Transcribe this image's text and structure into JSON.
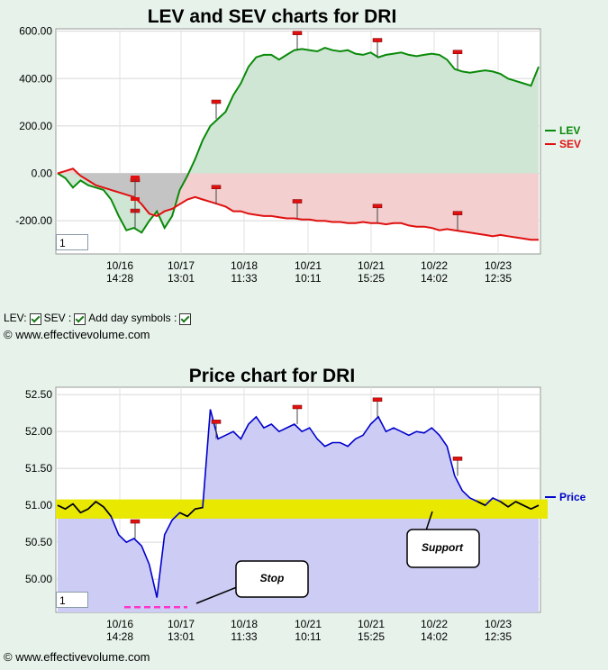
{
  "chart_data": [
    {
      "type": "line",
      "title": "LEV and SEV charts for DRI",
      "x_tick_labels": [
        {
          "date": "10/16",
          "time": "14:28"
        },
        {
          "date": "10/17",
          "time": "13:01"
        },
        {
          "date": "10/18",
          "time": "11:33"
        },
        {
          "date": "10/21",
          "time": "10:11"
        },
        {
          "date": "10/21",
          "time": "15:25"
        },
        {
          "date": "10/22",
          "time": "14:02"
        },
        {
          "date": "10/23",
          "time": "12:35"
        }
      ],
      "y_ticks": [
        "600.00",
        "400.00",
        "200.00",
        "0.00",
        "-200.00"
      ],
      "ylim": [
        -340,
        610
      ],
      "legend": [
        {
          "label": "LEV",
          "color": "#0a8a0a"
        },
        {
          "label": "SEV",
          "color": "#e01010"
        }
      ],
      "series": [
        {
          "name": "LEV",
          "color": "#0a8a0a",
          "values": [
            0,
            -20,
            -60,
            -30,
            -50,
            -60,
            -70,
            -110,
            -180,
            -240,
            -230,
            -250,
            -200,
            -160,
            -230,
            -180,
            -70,
            -10,
            60,
            140,
            200,
            230,
            260,
            330,
            380,
            450,
            490,
            500,
            500,
            480,
            500,
            520,
            525,
            520,
            515,
            530,
            520,
            515,
            520,
            505,
            500,
            510,
            490,
            500,
            505,
            510,
            500,
            495,
            500,
            505,
            500,
            480,
            440,
            430,
            425,
            430,
            435,
            430,
            420,
            400,
            390,
            380,
            370,
            450
          ]
        },
        {
          "name": "SEV",
          "color": "#e01010",
          "values": [
            0,
            10,
            20,
            -10,
            -30,
            -50,
            -60,
            -70,
            -80,
            -90,
            -100,
            -130,
            -170,
            -180,
            -160,
            -150,
            -130,
            -110,
            -100,
            -110,
            -120,
            -130,
            -140,
            -160,
            -160,
            -170,
            -175,
            -180,
            -180,
            -185,
            -190,
            -190,
            -195,
            -195,
            -200,
            -200,
            -205,
            -205,
            -210,
            -210,
            -205,
            -210,
            -210,
            -215,
            -210,
            -210,
            -220,
            -225,
            -225,
            -230,
            -240,
            -235,
            -240,
            -245,
            -250,
            -255,
            -260,
            -265,
            -260,
            -265,
            -270,
            -275,
            -280,
            -280
          ]
        }
      ],
      "day_markers": [
        "10/16 14:28",
        "10/17 13:01",
        "10/18 11:33",
        "10/21 10:11",
        "10/21 15:25",
        "10/22 14:02"
      ],
      "input_value": "1"
    },
    {
      "type": "line",
      "title": "Price chart for DRI",
      "x_tick_labels": [
        {
          "date": "10/16",
          "time": "14:28"
        },
        {
          "date": "10/17",
          "time": "13:01"
        },
        {
          "date": "10/18",
          "time": "11:33"
        },
        {
          "date": "10/21",
          "time": "10:11"
        },
        {
          "date": "10/21",
          "time": "15:25"
        },
        {
          "date": "10/22",
          "time": "14:02"
        },
        {
          "date": "10/23",
          "time": "12:35"
        }
      ],
      "y_ticks": [
        "52.50",
        "52.00",
        "51.50",
        "51.00",
        "50.50",
        "50.00"
      ],
      "ylim": [
        49.55,
        52.6
      ],
      "legend": [
        {
          "label": "Price",
          "color": "#0000cc"
        }
      ],
      "series": [
        {
          "name": "Price",
          "color": "#0000cc",
          "values": [
            51.0,
            50.95,
            51.02,
            50.9,
            50.95,
            51.05,
            50.98,
            50.85,
            50.6,
            50.5,
            50.55,
            50.45,
            50.2,
            49.75,
            50.6,
            50.8,
            50.9,
            50.85,
            50.95,
            50.97,
            52.3,
            51.9,
            51.95,
            52.0,
            51.9,
            52.1,
            52.2,
            52.05,
            52.1,
            52.0,
            52.05,
            52.1,
            52.0,
            52.05,
            51.9,
            51.8,
            51.85,
            51.85,
            51.8,
            51.9,
            51.95,
            52.1,
            52.2,
            52.0,
            52.05,
            52.0,
            51.95,
            52.0,
            51.98,
            52.05,
            51.95,
            51.8,
            51.4,
            51.2,
            51.1,
            51.05,
            51.0,
            51.1,
            51.05,
            50.98,
            51.05,
            51.0,
            50.95,
            51.0
          ]
        }
      ],
      "support_band": [
        50.82,
        51.08
      ],
      "stop_level": 49.62,
      "annotations": [
        {
          "label": "Stop"
        },
        {
          "label": "Support"
        }
      ],
      "input_value": "1"
    }
  ],
  "controls": {
    "lev_label": "LEV:",
    "sev_label": "SEV :",
    "day_symbols_label": "Add day symbols :"
  },
  "copyright": "© www.effectivevolume.com"
}
